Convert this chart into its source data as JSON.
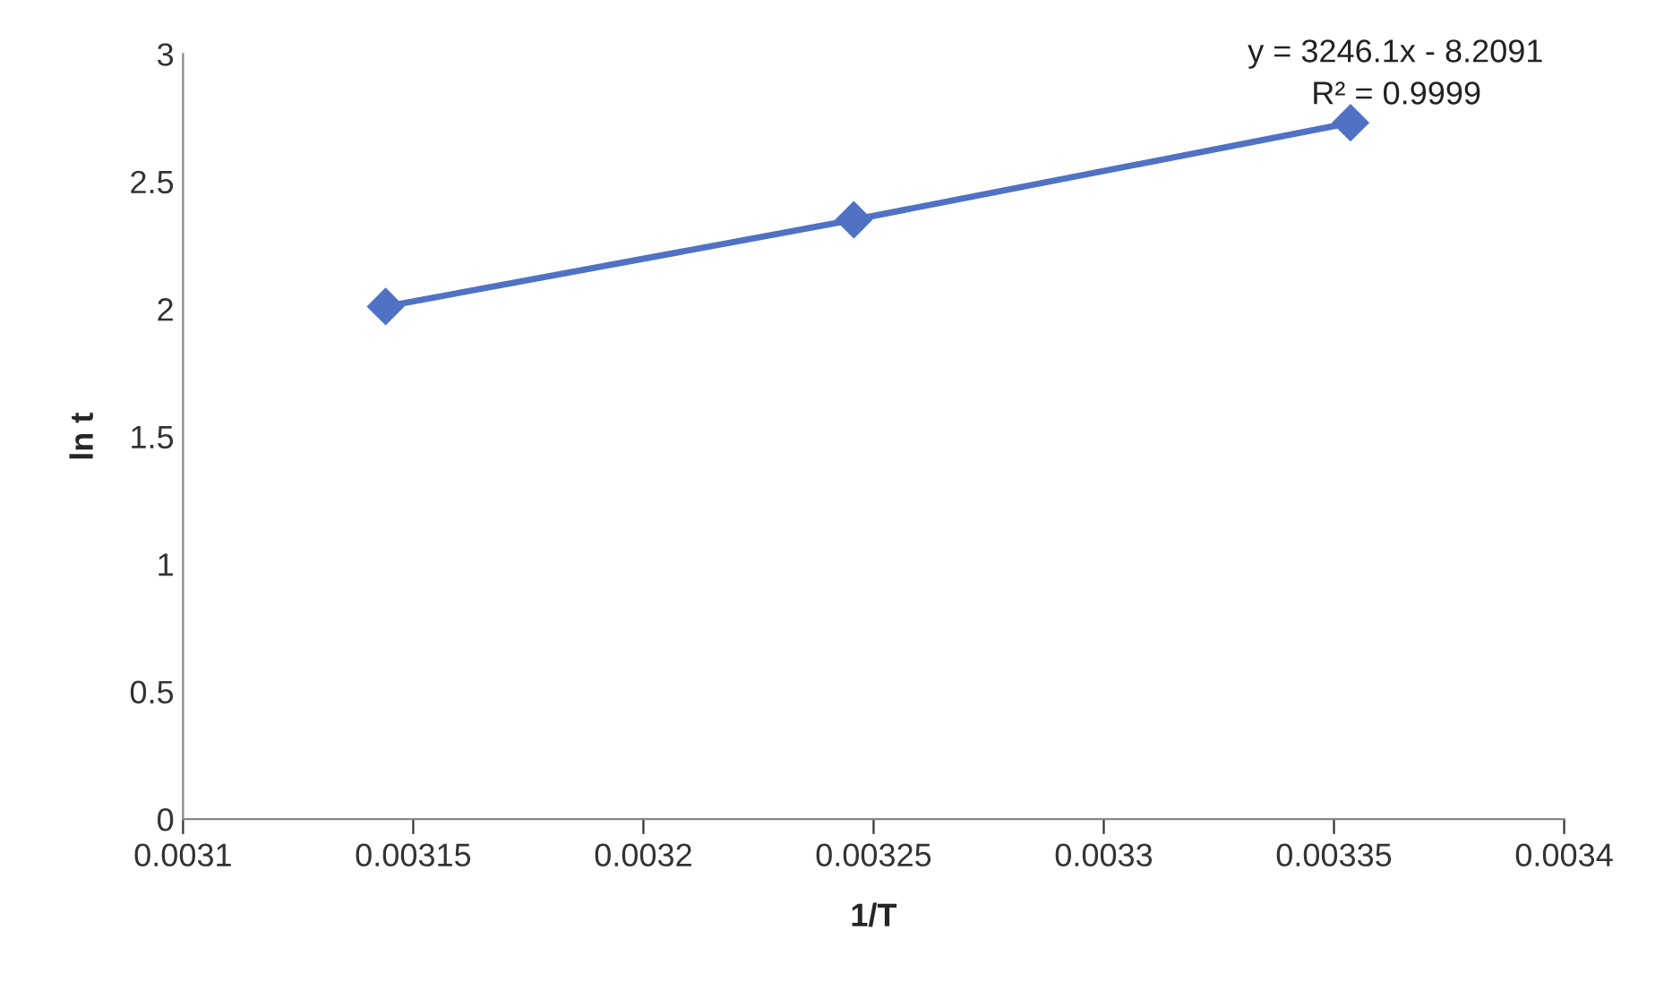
{
  "chart_data": {
    "type": "line",
    "xlabel": "1/T",
    "ylabel": "ln t",
    "x": [
      0.003144,
      0.0032457,
      0.0033536
    ],
    "series": [
      {
        "color": "#4f72c4",
        "values": [
          2.01,
          2.35,
          2.73
        ]
      }
    ],
    "marker": "diamond",
    "line_style": "solid",
    "grid": false,
    "legend": false,
    "xlim": [
      0.0031,
      0.0034
    ],
    "xticks": [
      0.0031,
      0.00315,
      0.0032,
      0.00325,
      0.0033,
      0.00335,
      0.0034
    ],
    "ylim": [
      0,
      3
    ],
    "yticks": [
      0,
      0.5,
      1,
      1.5,
      2,
      2.5,
      3
    ],
    "annotations": [
      "y = 3246.1x - 8.2091",
      "R² = 0.9999"
    ]
  }
}
